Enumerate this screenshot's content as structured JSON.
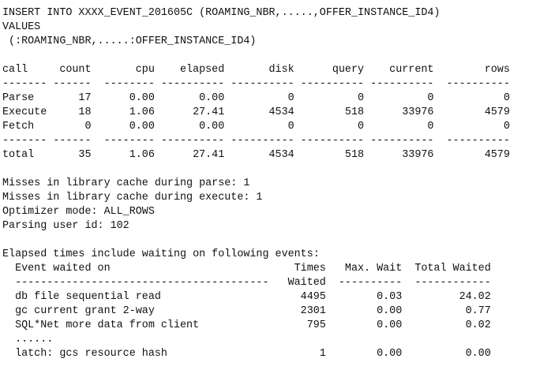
{
  "sql": [
    "INSERT INTO XXXX_EVENT_201605C (ROAMING_NBR,.....,OFFER_INSTANCE_ID4)",
    "VALUES",
    " (:ROAMING_NBR,.....:OFFER_INSTANCE_ID4)"
  ],
  "stats": [
    "call     count       cpu    elapsed       disk      query    current        rows",
    "------- ------  -------- ---------- ---------- ---------- ----------  ----------",
    "Parse       17      0.00       0.00          0          0          0           0",
    "Execute     18      1.06      27.41       4534        518      33976        4579",
    "Fetch        0      0.00       0.00          0          0          0           0",
    "------- ------  -------- ---------- ---------- ---------- ----------  ----------",
    "total       35      1.06      27.41       4534        518      33976        4579"
  ],
  "info": [
    "Misses in library cache during parse: 1",
    "Misses in library cache during execute: 1",
    "Optimizer mode: ALL_ROWS",
    "Parsing user id: 102"
  ],
  "waits": [
    "Elapsed times include waiting on following events:",
    "  Event waited on                             Times   Max. Wait  Total Waited",
    "  ----------------------------------------   Waited  ----------  ------------",
    "  db file sequential read                      4495        0.03         24.02",
    "  gc current grant 2-way                       2301        0.00          0.77",
    "  SQL*Net more data from client                 795        0.00          0.02",
    "  ......",
    "  latch: gcs resource hash                        1        0.00          0.00"
  ]
}
